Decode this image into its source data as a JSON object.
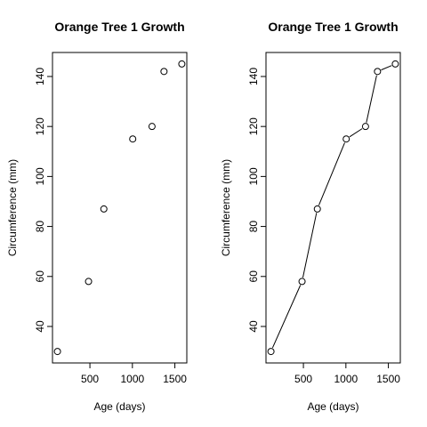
{
  "chart_data": [
    {
      "type": "scatter",
      "title": "Orange Tree 1 Growth",
      "xlabel": "Age (days)",
      "ylabel": "Circumference (mm)",
      "xlim": [
        118,
        1582
      ],
      "ylim": [
        30,
        145
      ],
      "xticks": [
        500,
        1000,
        1500
      ],
      "yticks": [
        40,
        60,
        80,
        100,
        120,
        140
      ],
      "connect": false,
      "x": [
        118,
        484,
        664,
        1004,
        1231,
        1372,
        1582
      ],
      "y": [
        30,
        58,
        87,
        115,
        120,
        142,
        145
      ]
    },
    {
      "type": "line",
      "title": "Orange Tree 1 Growth",
      "xlabel": "Age (days)",
      "ylabel": "Circumference (mm)",
      "xlim": [
        118,
        1582
      ],
      "ylim": [
        30,
        145
      ],
      "xticks": [
        500,
        1000,
        1500
      ],
      "yticks": [
        40,
        60,
        80,
        100,
        120,
        140
      ],
      "connect": true,
      "x": [
        118,
        484,
        664,
        1004,
        1231,
        1372,
        1582
      ],
      "y": [
        30,
        58,
        87,
        115,
        120,
        142,
        145
      ]
    }
  ]
}
